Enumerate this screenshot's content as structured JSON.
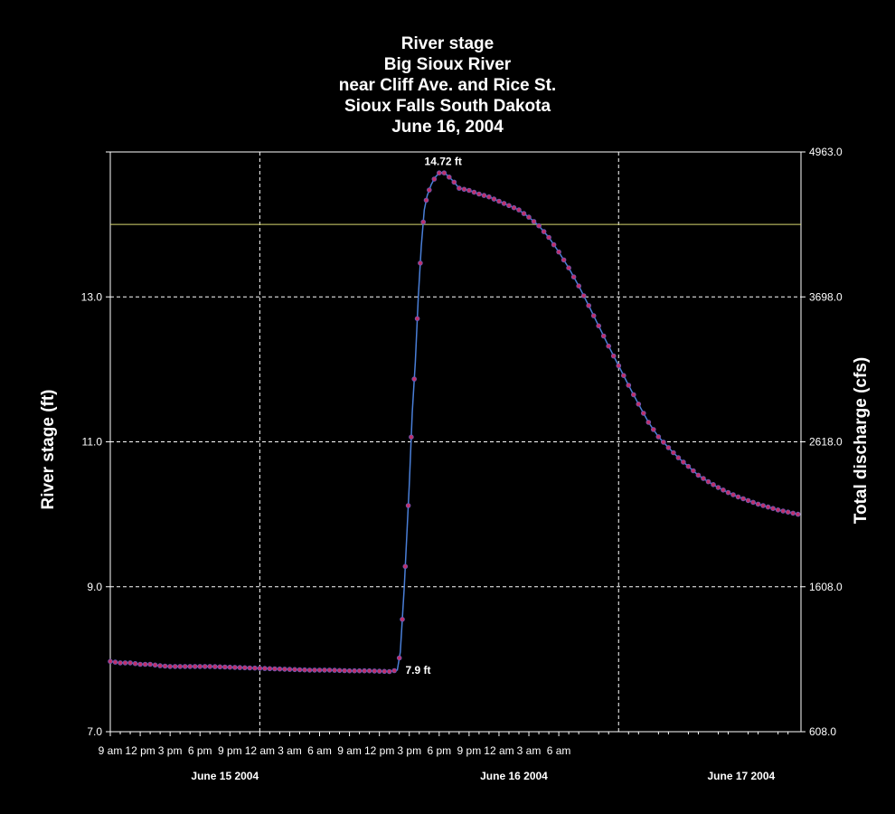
{
  "chart_data": {
    "type": "line",
    "title_lines": [
      "River stage",
      "Big Sioux River",
      "near Cliff Ave. and Rice St.",
      "Sioux Falls South Dakota",
      "June 16, 2004"
    ],
    "ylabel": "River stage (ft)",
    "ylabel_right": "Total discharge (cfs)",
    "ylim": [
      7.0,
      15.0
    ],
    "yticks": [
      "7.0",
      "9.0",
      "11.0",
      "13.0"
    ],
    "yticks_right": [
      "608.0",
      "1608.0",
      "2618.0",
      "3698.0",
      "4963.0"
    ],
    "xlim_hours": [
      0,
      69.3
    ],
    "xticks": [
      {
        "h": 0,
        "label": "9 am"
      },
      {
        "h": 3,
        "label": "12 pm"
      },
      {
        "h": 6,
        "label": "3 pm"
      },
      {
        "h": 9,
        "label": "6 pm"
      },
      {
        "h": 12,
        "label": "9 pm"
      },
      {
        "h": 15,
        "label": "12 am"
      },
      {
        "h": 18,
        "label": "3 am"
      },
      {
        "h": 21,
        "label": "6 am"
      },
      {
        "h": 24,
        "label": "9 am"
      },
      {
        "h": 27,
        "label": "12 pm"
      },
      {
        "h": 30,
        "label": "3 pm"
      },
      {
        "h": 33,
        "label": "6 pm"
      },
      {
        "h": 36,
        "label": "9 pm"
      },
      {
        "h": 39,
        "label": "12 am"
      },
      {
        "h": 42,
        "label": "3 am"
      },
      {
        "h": 45,
        "label": "6 am"
      }
    ],
    "date_labels": [
      {
        "h": 11.5,
        "label": "June 15 2004"
      },
      {
        "h": 40.5,
        "label": "June 16 2004"
      },
      {
        "h": 63.3,
        "label": "June 17 2004"
      }
    ],
    "day_dividers_hours": [
      15,
      51
    ],
    "reference_line_ft": 14.0,
    "grid": true,
    "series": [
      {
        "color": "#4a7fd8",
        "marker_color": "#c0306a",
        "points": [
          [
            0,
            7.97
          ],
          [
            1,
            7.95
          ],
          [
            2,
            7.95
          ],
          [
            3,
            7.93
          ],
          [
            4,
            7.93
          ],
          [
            5,
            7.91
          ],
          [
            6,
            7.9
          ],
          [
            8,
            7.9
          ],
          [
            10,
            7.9
          ],
          [
            12,
            7.89
          ],
          [
            14,
            7.88
          ],
          [
            16,
            7.87
          ],
          [
            18,
            7.86
          ],
          [
            20,
            7.85
          ],
          [
            22,
            7.85
          ],
          [
            24,
            7.84
          ],
          [
            26,
            7.84
          ],
          [
            28,
            7.83
          ],
          [
            28.8,
            7.85
          ],
          [
            29.1,
            8.1
          ],
          [
            29.5,
            9.0
          ],
          [
            30.0,
            10.4
          ],
          [
            30.3,
            11.4
          ],
          [
            30.6,
            12.1
          ],
          [
            30.9,
            13.0
          ],
          [
            31.2,
            13.7
          ],
          [
            31.5,
            14.2
          ],
          [
            31.8,
            14.4
          ],
          [
            32.2,
            14.55
          ],
          [
            32.6,
            14.65
          ],
          [
            33.0,
            14.71
          ],
          [
            33.4,
            14.72
          ],
          [
            33.8,
            14.68
          ],
          [
            34.4,
            14.6
          ],
          [
            35.0,
            14.5
          ],
          [
            36.0,
            14.47
          ],
          [
            37.0,
            14.42
          ],
          [
            38.0,
            14.38
          ],
          [
            39.0,
            14.32
          ],
          [
            40.0,
            14.26
          ],
          [
            41.0,
            14.2
          ],
          [
            42.0,
            14.1
          ],
          [
            43.0,
            13.98
          ],
          [
            44.0,
            13.82
          ],
          [
            45.0,
            13.62
          ],
          [
            46.0,
            13.4
          ],
          [
            47.0,
            13.15
          ],
          [
            48.0,
            12.88
          ],
          [
            49.0,
            12.6
          ],
          [
            50.0,
            12.32
          ],
          [
            51.0,
            12.05
          ],
          [
            52.0,
            11.78
          ],
          [
            53.0,
            11.52
          ],
          [
            54.0,
            11.27
          ],
          [
            55.0,
            11.07
          ],
          [
            56.0,
            10.92
          ],
          [
            57.0,
            10.78
          ],
          [
            58.0,
            10.66
          ],
          [
            59.0,
            10.54
          ],
          [
            60.0,
            10.45
          ],
          [
            61.0,
            10.37
          ],
          [
            62.0,
            10.3
          ],
          [
            63.0,
            10.24
          ],
          [
            64.0,
            10.19
          ],
          [
            65.0,
            10.14
          ],
          [
            66.0,
            10.1
          ],
          [
            67.0,
            10.06
          ],
          [
            68.0,
            10.03
          ],
          [
            69.0,
            10.0
          ]
        ]
      }
    ],
    "annotations": [
      {
        "x": 33.4,
        "y": 14.72,
        "text": "14.72 ft"
      },
      {
        "x": 28.8,
        "y": 7.85,
        "text": "7.9 ft"
      }
    ]
  }
}
